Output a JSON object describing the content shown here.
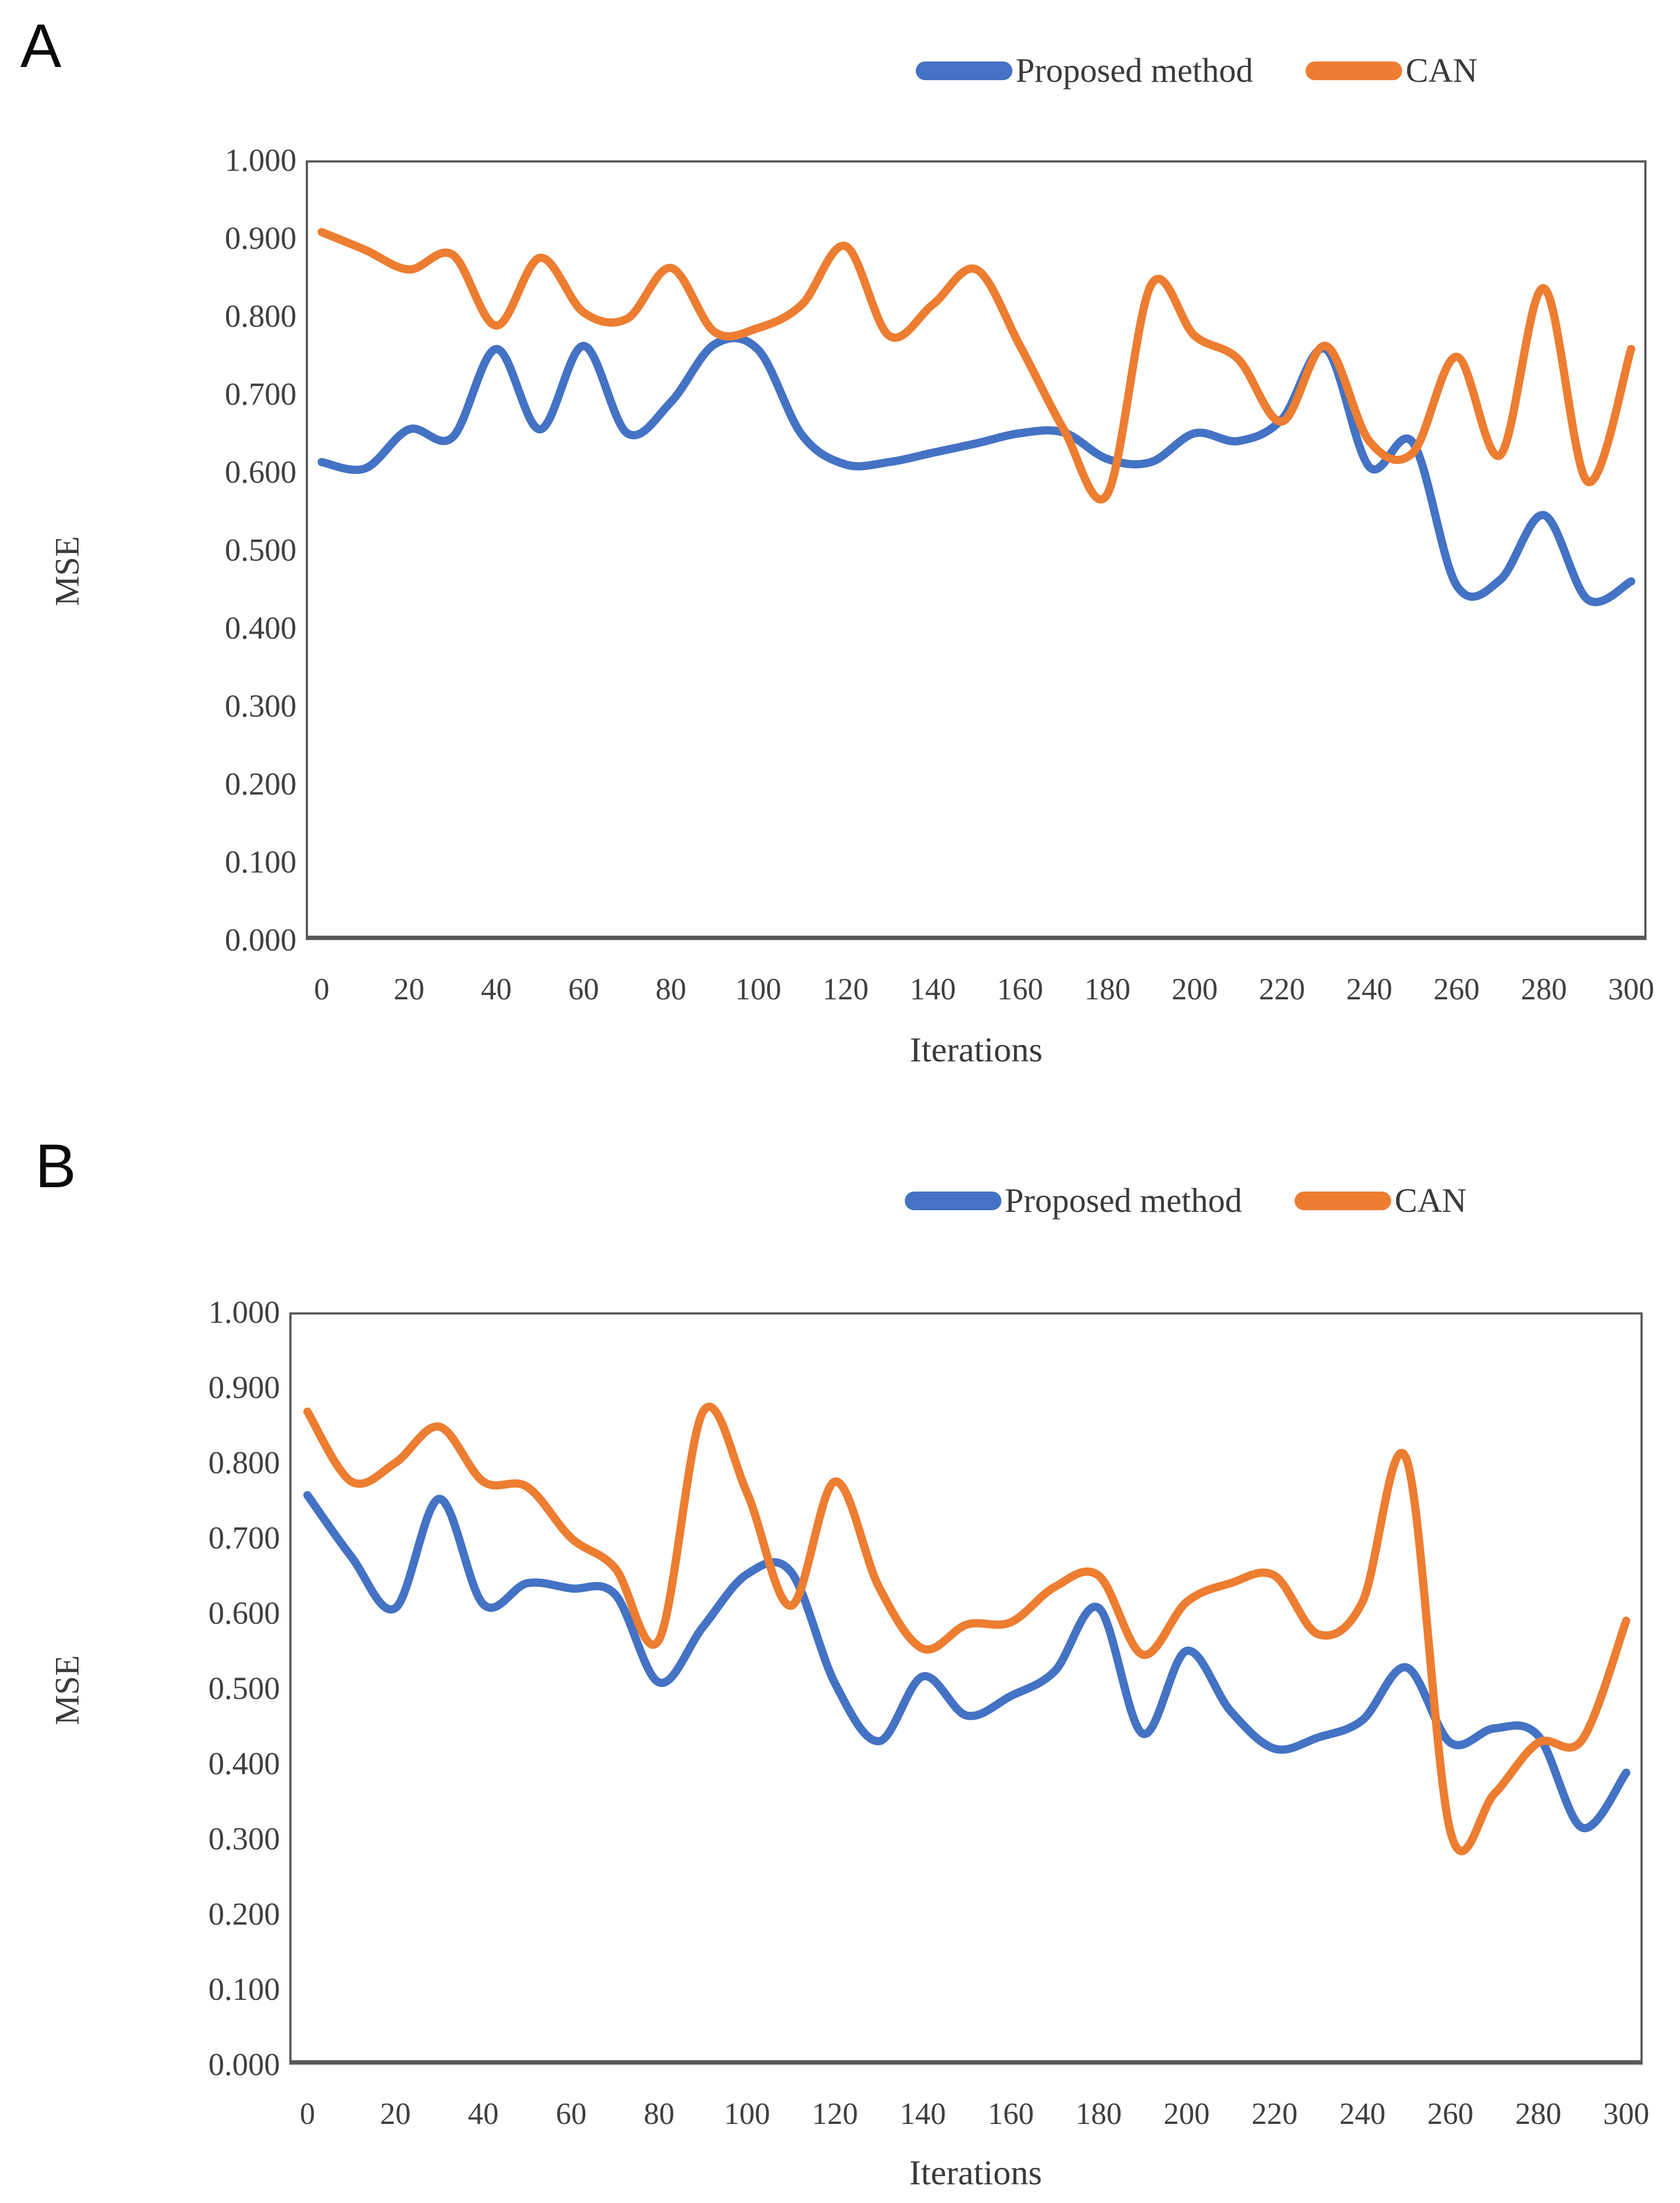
{
  "page": {
    "background": "#ffffff"
  },
  "panels": [
    {
      "letter": "A",
      "ylabel": "MSE",
      "xlabel": "Iterations"
    },
    {
      "letter": "B",
      "ylabel": "MSE",
      "xlabel": "Iterations"
    }
  ],
  "colors": {
    "proposed": "#4472C4",
    "can": "#ED7D31",
    "frame": "#595959",
    "tick_text": "#3f3f3f"
  },
  "chart_data": [
    {
      "type": "line",
      "title": "",
      "xlabel": "Iterations",
      "ylabel": "MSE",
      "xlim": [
        0,
        300
      ],
      "ylim": [
        0.0,
        1.0
      ],
      "grid": false,
      "legend_position": "top",
      "xticks": [
        0,
        20,
        40,
        60,
        80,
        100,
        120,
        140,
        160,
        180,
        200,
        220,
        240,
        260,
        280,
        300
      ],
      "xtick_labels": [
        "0",
        "20",
        "40",
        "60",
        "80",
        "100",
        "120",
        "140",
        "160",
        "180",
        "200",
        "220",
        "240",
        "260",
        "280",
        "300"
      ],
      "yticks": [
        0.0,
        0.1,
        0.2,
        0.3,
        0.4,
        0.5,
        0.6,
        0.7,
        0.8,
        0.9,
        1.0
      ],
      "ytick_labels": [
        "0.000",
        "0.100",
        "0.200",
        "0.300",
        "0.400",
        "0.500",
        "0.600",
        "0.700",
        "0.800",
        "0.900",
        "1.000"
      ],
      "x": [
        0,
        10,
        20,
        30,
        40,
        50,
        60,
        70,
        80,
        90,
        100,
        110,
        120,
        130,
        140,
        150,
        160,
        170,
        180,
        190,
        200,
        210,
        220,
        230,
        240,
        250,
        260,
        270,
        280,
        290,
        300
      ],
      "series": [
        {
          "name": "Proposed method",
          "color": "#4472C4",
          "values": [
            0.613,
            0.605,
            0.655,
            0.645,
            0.758,
            0.655,
            0.762,
            0.65,
            0.69,
            0.764,
            0.757,
            0.648,
            0.61,
            0.613,
            0.625,
            0.637,
            0.65,
            0.651,
            0.617,
            0.613,
            0.65,
            0.64,
            0.668,
            0.758,
            0.607,
            0.638,
            0.455,
            0.462,
            0.545,
            0.437,
            0.46
          ]
        },
        {
          "name": "CAN",
          "color": "#ED7D31",
          "values": [
            0.908,
            0.885,
            0.86,
            0.879,
            0.788,
            0.875,
            0.805,
            0.797,
            0.862,
            0.78,
            0.785,
            0.815,
            0.89,
            0.775,
            0.815,
            0.86,
            0.762,
            0.655,
            0.572,
            0.84,
            0.775,
            0.745,
            0.665,
            0.762,
            0.64,
            0.625,
            0.748,
            0.622,
            0.836,
            0.588,
            0.758
          ]
        }
      ]
    },
    {
      "type": "line",
      "title": "",
      "xlabel": "Iterations",
      "ylabel": "MSE",
      "xlim": [
        0,
        300
      ],
      "ylim": [
        0.0,
        1.0
      ],
      "grid": false,
      "legend_position": "top",
      "xticks": [
        0,
        20,
        40,
        60,
        80,
        100,
        120,
        140,
        160,
        180,
        200,
        220,
        240,
        260,
        280,
        300
      ],
      "xtick_labels": [
        "0",
        "20",
        "40",
        "60",
        "80",
        "100",
        "120",
        "140",
        "160",
        "180",
        "200",
        "220",
        "240",
        "260",
        "280",
        "300"
      ],
      "yticks": [
        0.0,
        0.1,
        0.2,
        0.3,
        0.4,
        0.5,
        0.6,
        0.7,
        0.8,
        0.9,
        1.0
      ],
      "ytick_labels": [
        "0.000",
        "0.100",
        "0.200",
        "0.300",
        "0.400",
        "0.500",
        "0.600",
        "0.700",
        "0.800",
        "0.900",
        "1.000"
      ],
      "x": [
        0,
        10,
        20,
        30,
        40,
        50,
        60,
        70,
        80,
        90,
        100,
        110,
        120,
        130,
        140,
        150,
        160,
        170,
        180,
        190,
        200,
        210,
        220,
        230,
        240,
        250,
        260,
        270,
        280,
        290,
        300
      ],
      "series": [
        {
          "name": "Proposed method",
          "color": "#4472C4",
          "values": [
            0.757,
            0.675,
            0.607,
            0.752,
            0.612,
            0.64,
            0.633,
            0.625,
            0.508,
            0.582,
            0.652,
            0.655,
            0.507,
            0.43,
            0.516,
            0.464,
            0.49,
            0.523,
            0.607,
            0.44,
            0.55,
            0.47,
            0.42,
            0.435,
            0.458,
            0.528,
            0.428,
            0.447,
            0.437,
            0.315,
            0.388
          ]
        },
        {
          "name": "CAN",
          "color": "#ED7D31",
          "values": [
            0.868,
            0.775,
            0.8,
            0.848,
            0.775,
            0.768,
            0.7,
            0.66,
            0.565,
            0.868,
            0.76,
            0.61,
            0.775,
            0.635,
            0.553,
            0.585,
            0.588,
            0.635,
            0.65,
            0.545,
            0.615,
            0.64,
            0.65,
            0.572,
            0.615,
            0.805,
            0.31,
            0.36,
            0.428,
            0.432,
            0.59
          ]
        }
      ]
    }
  ]
}
